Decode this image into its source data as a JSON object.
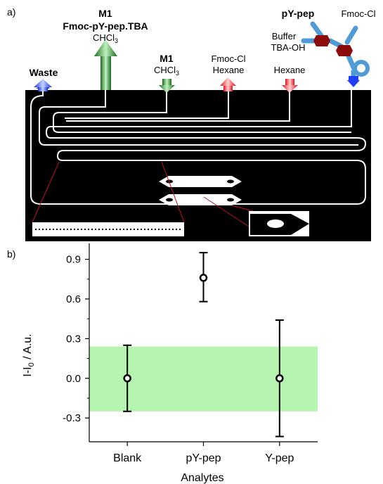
{
  "panel_a": {
    "label": "a)",
    "ports": [
      {
        "name": "Waste",
        "bold": true,
        "dir": "up",
        "color": "blue"
      },
      {
        "name": "M1",
        "sub_text": "Fmoc-pY-pep.TBA",
        "solvent": "CHCl",
        "solvent_sub": "3",
        "dir": "up",
        "color": "green"
      },
      {
        "name": "M1",
        "solvent": "CHCl",
        "solvent_sub": "3",
        "dir": "down",
        "color": "green"
      },
      {
        "line1": "Fmoc-Cl",
        "line2": "Hexane",
        "dir": "up",
        "color": "red"
      },
      {
        "line1": "Hexane",
        "dir": "down",
        "color": "red"
      }
    ],
    "molecule": {
      "title": "pY-pep",
      "left_label_1": "Buffer",
      "left_label_2": "TBA-OH",
      "right_label": "Fmoc-Cl"
    },
    "colors": {
      "blue": "#1f3fff",
      "green": "#2e8b2e",
      "red": "#e8141e",
      "dark_red": "#8b0a0a",
      "sky": "#4f9bd8",
      "chip": "#000000"
    }
  },
  "panel_b": {
    "label": "b)"
  },
  "chart_data": {
    "type": "scatter",
    "xlabel": "Analytes",
    "ylabel_main": "I-I",
    "ylabel_sub": "0",
    "ylabel_rest": " / A.u.",
    "categories": [
      "Blank",
      "pY-pep",
      "Y-pep"
    ],
    "values": [
      0.0,
      0.76,
      0.0
    ],
    "error_low": [
      -0.25,
      0.58,
      -0.44
    ],
    "error_high": [
      0.25,
      0.95,
      0.44
    ],
    "ylim": [
      -0.48,
      1.02
    ],
    "yticks": [
      -0.3,
      0.0,
      0.3,
      0.6,
      0.9
    ],
    "ytick_labels": [
      "-0.3",
      "0.0",
      "0.3",
      "0.6",
      "0.9"
    ],
    "band": [
      -0.25,
      0.24
    ],
    "band_color": "#b6f5b0"
  }
}
